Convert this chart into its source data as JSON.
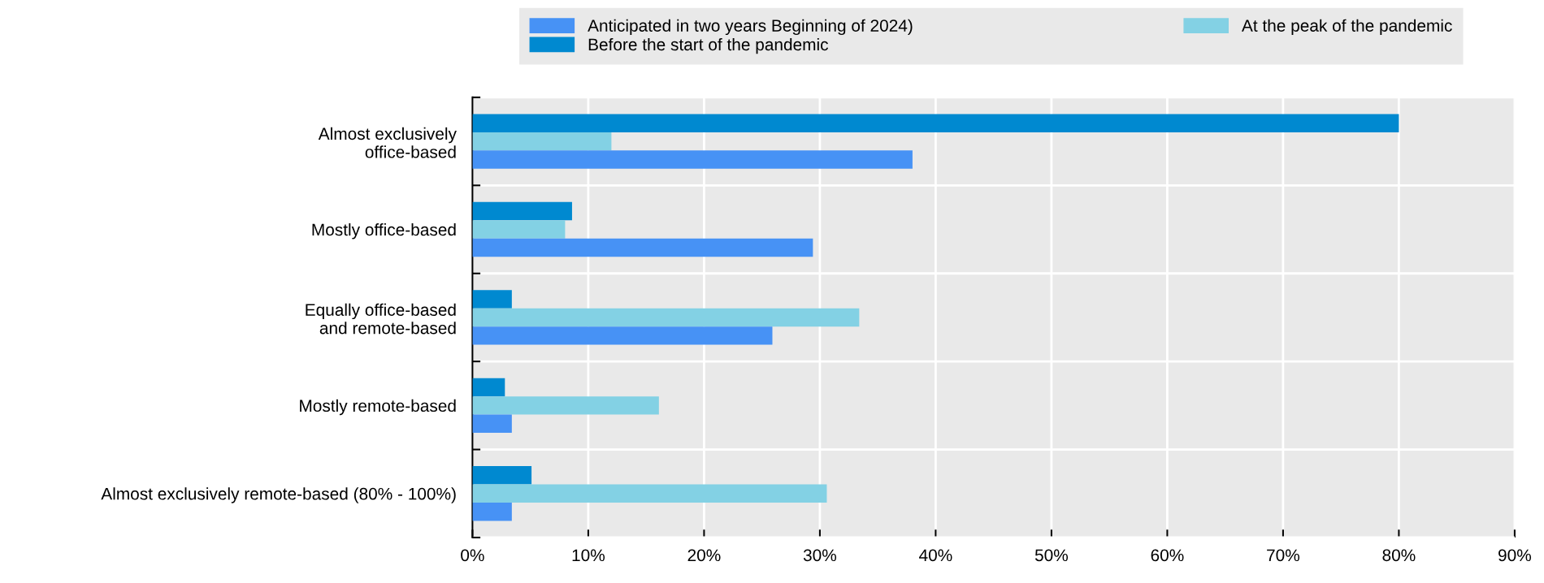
{
  "chart_data": {
    "type": "bar",
    "orientation": "horizontal",
    "categories": [
      "Almost exclusively\noffice-based",
      "Mostly office-based",
      "Equally office-based\nand remote-based",
      "Mostly remote-based",
      "Almost exclusively remote-based (80% - 100%)"
    ],
    "series": [
      {
        "name": "Before the start of the pandemic",
        "color": "#0089d0",
        "values": [
          80,
          8.6,
          3.4,
          2.8,
          5.1
        ]
      },
      {
        "name": "At the peak of the pandemic",
        "color": "#83d1e4",
        "values": [
          12,
          8.0,
          33.4,
          16.1,
          30.6
        ]
      },
      {
        "name": "Anticipated in two years Beginning of 2024)",
        "color": "#4792f5",
        "values": [
          38,
          29.4,
          25.9,
          3.4,
          3.4
        ]
      }
    ],
    "xlim": [
      0,
      90
    ],
    "xticks": [
      {
        "value": 0,
        "label": "0%"
      },
      {
        "value": 10,
        "label": "10%"
      },
      {
        "value": 20,
        "label": "20%"
      },
      {
        "value": 30,
        "label": "30%"
      },
      {
        "value": 40,
        "label": "40%"
      },
      {
        "value": 50,
        "label": "50%"
      },
      {
        "value": 60,
        "label": "60%"
      },
      {
        "value": 70,
        "label": "70%"
      },
      {
        "value": 80,
        "label": "80%"
      },
      {
        "value": 90,
        "label": "90%"
      }
    ],
    "grid": true,
    "legend": "top"
  }
}
